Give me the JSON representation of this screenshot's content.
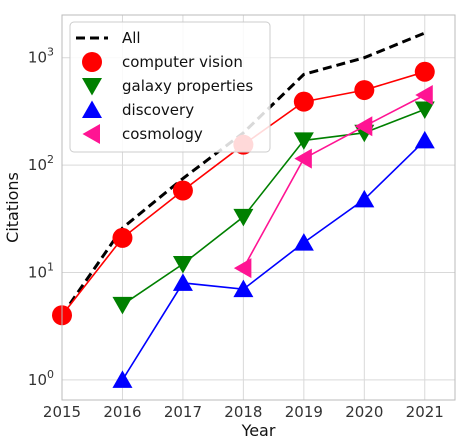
{
  "chart_data": {
    "type": "line",
    "xlabel": "Year",
    "ylabel": "Citations",
    "x": [
      2015,
      2016,
      2017,
      2018,
      2019,
      2020,
      2021
    ],
    "xlim": [
      2015,
      2021.5
    ],
    "ylim": [
      0.65,
      2500
    ],
    "yscale": "log",
    "grid": true,
    "legend": "top-left",
    "y_ticks": [
      {
        "value": 1,
        "base": "10",
        "exp": "0"
      },
      {
        "value": 10,
        "base": "10",
        "exp": "1"
      },
      {
        "value": 100,
        "base": "10",
        "exp": "2"
      },
      {
        "value": 1000,
        "base": "10",
        "exp": "3"
      }
    ],
    "series": [
      {
        "name": "All",
        "color": "#000000",
        "style": "dashed",
        "marker": "none",
        "points": [
          [
            2015,
            4
          ],
          [
            2016,
            26
          ],
          [
            2017,
            75
          ],
          [
            2018,
            200
          ],
          [
            2019,
            700
          ],
          [
            2020,
            1000
          ],
          [
            2021,
            1700
          ]
        ]
      },
      {
        "name": "computer vision",
        "color": "#ff0000",
        "style": "solid",
        "marker": "circle",
        "points": [
          [
            2015,
            4
          ],
          [
            2016,
            21
          ],
          [
            2017,
            58
          ],
          [
            2018,
            155
          ],
          [
            2019,
            390
          ],
          [
            2020,
            500
          ],
          [
            2021,
            740
          ]
        ]
      },
      {
        "name": "galaxy properties",
        "color": "#008000",
        "style": "solid",
        "marker": "triangle-down",
        "points": [
          [
            2016,
            5
          ],
          [
            2017,
            12
          ],
          [
            2018,
            33
          ],
          [
            2019,
            170
          ],
          [
            2020,
            200
          ],
          [
            2021,
            330
          ]
        ]
      },
      {
        "name": "discovery",
        "color": "#0000ff",
        "style": "solid",
        "marker": "triangle-up",
        "points": [
          [
            2016,
            1
          ],
          [
            2017,
            8
          ],
          [
            2018,
            7
          ],
          [
            2019,
            19
          ],
          [
            2020,
            48
          ],
          [
            2021,
            170
          ]
        ]
      },
      {
        "name": "cosmology",
        "color": "#ff1493",
        "style": "solid",
        "marker": "triangle-left",
        "points": [
          [
            2018,
            11
          ],
          [
            2019,
            115
          ],
          [
            2020,
            230
          ],
          [
            2021,
            450
          ]
        ]
      }
    ]
  }
}
